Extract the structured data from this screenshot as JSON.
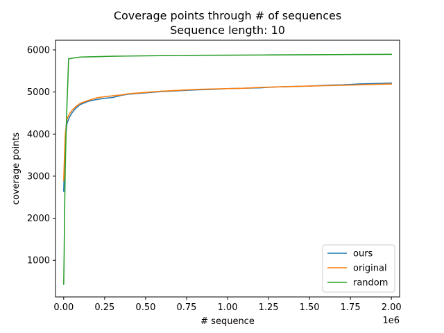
{
  "chart_data": {
    "type": "line",
    "title": "Coverage points through # of sequences",
    "subtitle": "Sequence length: 10",
    "xlabel": "# sequence",
    "ylabel": "coverage points",
    "x_offset_text": "1e6",
    "xlim": [
      -50000,
      2050000
    ],
    "ylim": [
      130,
      6230
    ],
    "x_ticks": [
      0,
      250000,
      500000,
      750000,
      1000000,
      1250000,
      1500000,
      1750000,
      2000000
    ],
    "x_tick_labels": [
      "0.00",
      "0.25",
      "0.50",
      "0.75",
      "1.00",
      "1.25",
      "1.50",
      "1.75",
      "2.00"
    ],
    "y_ticks": [
      1000,
      2000,
      3000,
      4000,
      5000,
      6000
    ],
    "y_tick_labels": [
      "1000",
      "2000",
      "3000",
      "4000",
      "5000",
      "6000"
    ],
    "legend_position": "lower-right",
    "grid": false,
    "series": [
      {
        "name": "ours",
        "color": "#1f77b4",
        "x": [
          0,
          5000,
          10000,
          20000,
          35000,
          50000,
          70000,
          100000,
          150000,
          200000,
          250000,
          300000,
          350000,
          400000,
          500000,
          600000,
          700000,
          800000,
          900000,
          1000000,
          1100000,
          1200000,
          1300000,
          1400000,
          1500000,
          1600000,
          1700000,
          1800000,
          1900000,
          2000000
        ],
        "y": [
          2640,
          3300,
          3900,
          4250,
          4400,
          4500,
          4600,
          4700,
          4780,
          4820,
          4850,
          4870,
          4920,
          4950,
          4980,
          5010,
          5030,
          5050,
          5060,
          5080,
          5090,
          5100,
          5120,
          5130,
          5140,
          5160,
          5170,
          5190,
          5200,
          5210
        ]
      },
      {
        "name": "original",
        "color": "#ff7f0e",
        "x": [
          0,
          5000,
          10000,
          20000,
          35000,
          50000,
          70000,
          100000,
          150000,
          200000,
          250000,
          300000,
          350000,
          400000,
          500000,
          600000,
          700000,
          800000,
          900000,
          1000000,
          1100000,
          1200000,
          1300000,
          1400000,
          1500000,
          1600000,
          1700000,
          1800000,
          1900000,
          2000000
        ],
        "y": [
          2900,
          3500,
          4000,
          4350,
          4480,
          4560,
          4640,
          4730,
          4800,
          4860,
          4890,
          4910,
          4930,
          4960,
          4990,
          5020,
          5040,
          5060,
          5070,
          5080,
          5090,
          5110,
          5120,
          5130,
          5140,
          5150,
          5160,
          5170,
          5180,
          5190
        ]
      },
      {
        "name": "random",
        "color": "#2ca02c",
        "x": [
          0,
          3000,
          6000,
          10000,
          15000,
          20000,
          25000,
          30000,
          100000,
          200000,
          300000,
          400000,
          500000,
          750000,
          1000000,
          1250000,
          1500000,
          1750000,
          2000000
        ],
        "y": [
          430,
          1200,
          2300,
          3300,
          4100,
          4700,
          5200,
          5790,
          5830,
          5840,
          5850,
          5855,
          5860,
          5870,
          5875,
          5880,
          5885,
          5890,
          5895
        ]
      }
    ]
  }
}
